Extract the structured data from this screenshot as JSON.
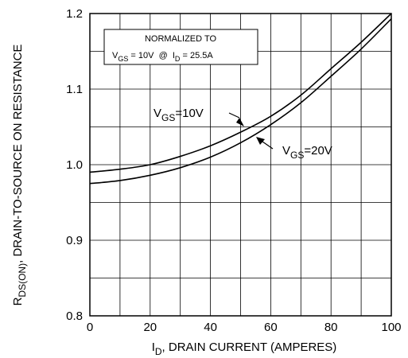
{
  "chart_data": {
    "type": "line",
    "xlabel": {
      "main": "I",
      "sub": "D",
      "rest": ", DRAIN CURRENT (AMPERES)"
    },
    "ylabel": {
      "main": "R",
      "sub": "DS(ON)",
      "rest": ", DRAIN-TO-SOURCE ON RESISTANCE"
    },
    "xlim": [
      0,
      100
    ],
    "ylim": [
      0.8,
      1.2
    ],
    "x_ticks": [
      "0",
      "20",
      "40",
      "60",
      "80",
      "100"
    ],
    "y_ticks": [
      "0.8",
      "0.9",
      "1.0",
      "1.1",
      "1.2"
    ],
    "grid": true,
    "legend_box": {
      "line1": "NORMALIZED TO",
      "line2": {
        "v": "V",
        "vsub": "GS",
        "vrest": " = 10V  @  I",
        "isub": "D",
        "irest": " = 25.5A"
      }
    },
    "series": [
      {
        "name": "VGS=10V",
        "label": {
          "main": "V",
          "sub": "GS",
          "rest": "=10V"
        },
        "x": [
          0,
          10,
          20,
          30,
          40,
          50,
          60,
          70,
          80,
          90,
          100
        ],
        "y": [
          0.99,
          0.994,
          1.0,
          1.011,
          1.025,
          1.043,
          1.064,
          1.092,
          1.127,
          1.162,
          1.2
        ]
      },
      {
        "name": "VGS=20V",
        "label": {
          "main": "V",
          "sub": "GS",
          "rest": "=20V"
        },
        "x": [
          0,
          10,
          20,
          30,
          40,
          50,
          60,
          70,
          80,
          90,
          100
        ],
        "y": [
          0.975,
          0.979,
          0.986,
          0.996,
          1.01,
          1.029,
          1.053,
          1.082,
          1.117,
          1.153,
          1.193
        ]
      }
    ]
  }
}
